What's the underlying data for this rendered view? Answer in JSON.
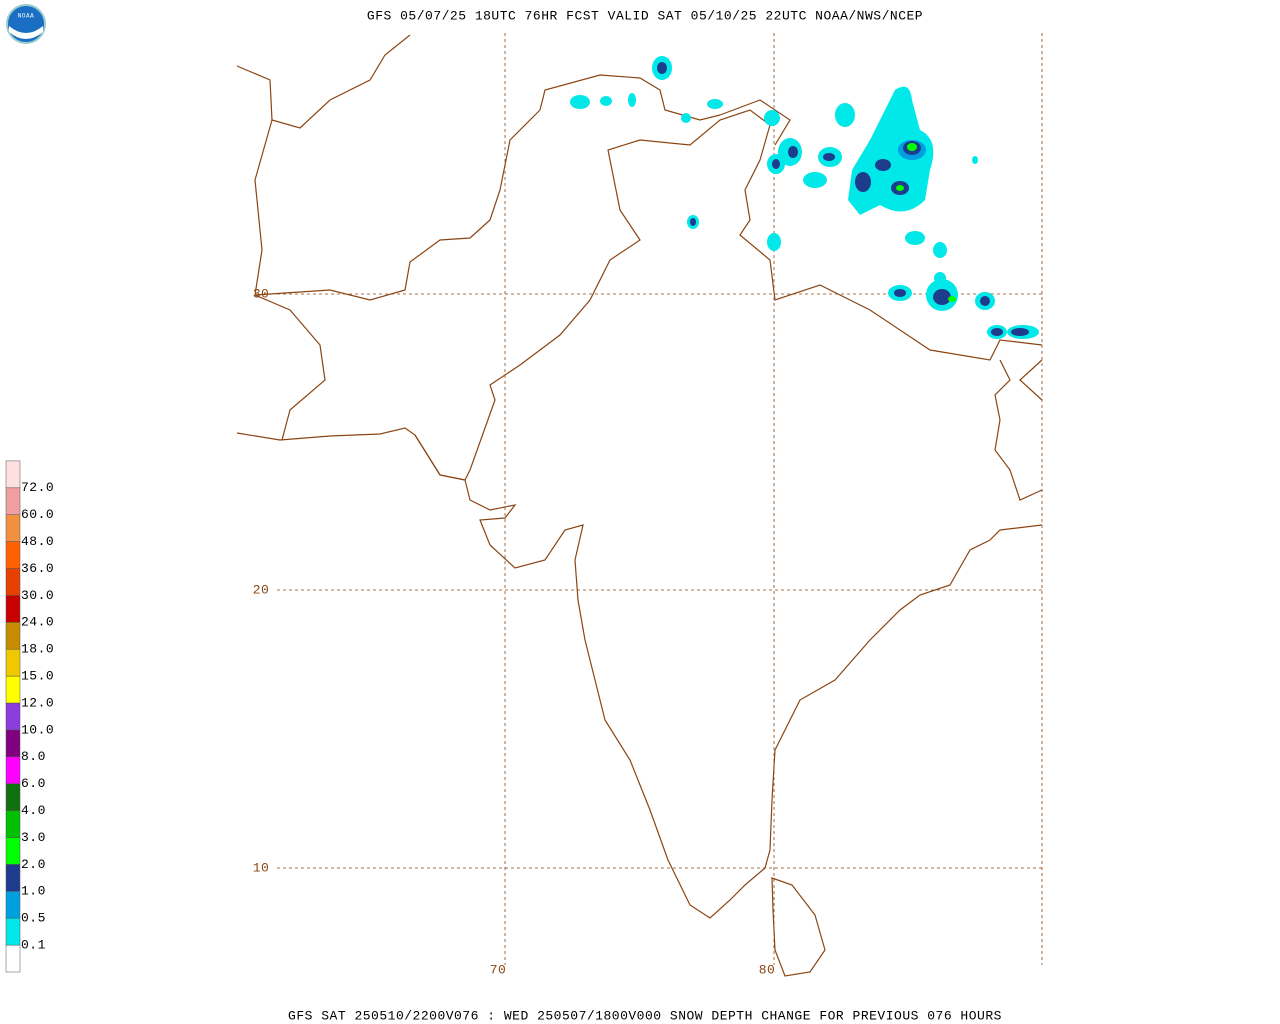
{
  "header": {
    "title": "GFS 05/07/25 18UTC 76HR FCST VALID SAT 05/10/25 22UTC NOAA/NWS/NCEP"
  },
  "footer": {
    "text": "GFS SAT 250510/2200V076 : WED 250507/1800V000 SNOW DEPTH CHANGE FOR PREVIOUS 076 HOURS"
  },
  "logo": {
    "text": "NOAA"
  },
  "grid": {
    "lat_labels": [
      "30",
      "20",
      "10"
    ],
    "lon_labels": [
      "70",
      "80"
    ]
  },
  "legend": {
    "labels": [
      "0.1",
      "0.5",
      "1.0",
      "2.0",
      "3.0",
      "4.0",
      "6.0",
      "8.0",
      "10.0",
      "12.0",
      "15.0",
      "18.0",
      "24.0",
      "30.0",
      "36.0",
      "48.0",
      "60.0",
      "72.0"
    ],
    "colors": [
      "#ffffff",
      "#00e8e8",
      "#00a0e0",
      "#1e3c8c",
      "#00ff00",
      "#00c000",
      "#107010",
      "#ff00ff",
      "#800080",
      "#8a3cdc",
      "#ffff00",
      "#f0c800",
      "#c88c00",
      "#c80000",
      "#e84000",
      "#ff6000",
      "#f09040",
      "#f0a0a0",
      "#ffe0e0"
    ]
  }
}
